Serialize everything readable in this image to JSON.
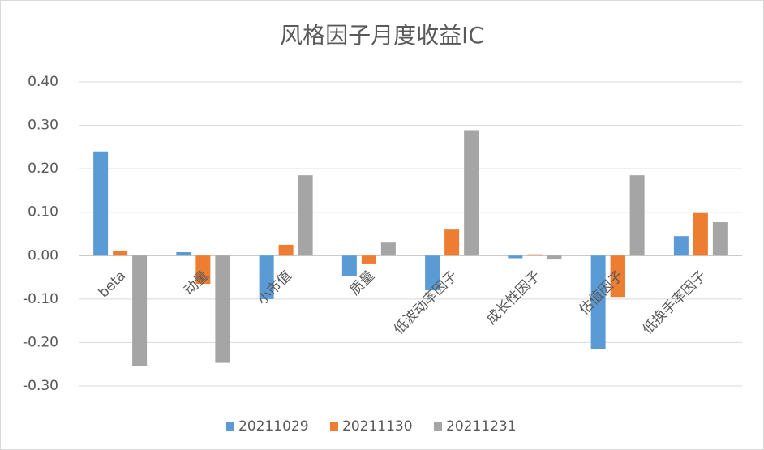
{
  "chart_data": {
    "type": "bar",
    "title": "风格因子月度收益IC",
    "categories": [
      "beta",
      "动量",
      "小市值",
      "质量",
      "低波动率因子",
      "成长性因子",
      "估值因子",
      "低换手率因子"
    ],
    "series": [
      {
        "name": "20211029",
        "color": "#5b9bd5",
        "values": [
          0.24,
          0.008,
          -0.1,
          -0.047,
          -0.08,
          -0.006,
          -0.215,
          0.045
        ]
      },
      {
        "name": "20211130",
        "color": "#ed7d31",
        "values": [
          0.01,
          -0.065,
          0.025,
          -0.018,
          0.06,
          0.003,
          -0.095,
          0.098
        ]
      },
      {
        "name": "20211231",
        "color": "#a5a5a5",
        "values": [
          -0.255,
          -0.247,
          0.185,
          0.03,
          0.289,
          -0.009,
          0.185,
          0.077
        ]
      }
    ],
    "ylim": [
      -0.3,
      0.4
    ],
    "yticks": [
      {
        "value": -0.3,
        "label": "-0.30"
      },
      {
        "value": -0.2,
        "label": "-0.20"
      },
      {
        "value": -0.1,
        "label": "-0.10"
      },
      {
        "value": 0,
        "label": "0.00"
      },
      {
        "value": 0.1,
        "label": "0.10"
      },
      {
        "value": 0.2,
        "label": "0.20"
      },
      {
        "value": 0.3,
        "label": "0.30"
      },
      {
        "value": 0.4,
        "label": "0.40"
      }
    ],
    "grid": true,
    "legend": "bottom"
  }
}
